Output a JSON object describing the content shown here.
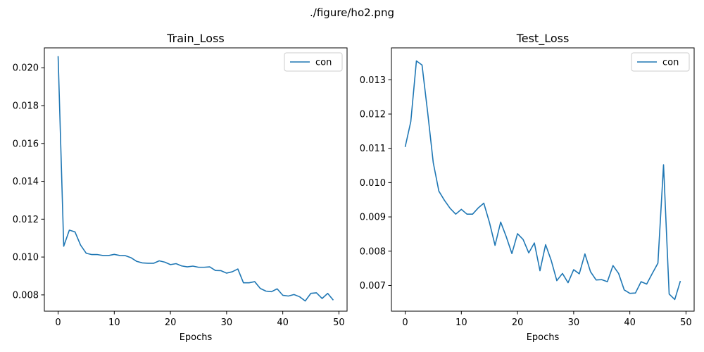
{
  "figure": {
    "suptitle": "./figure/ho2.png"
  },
  "chart_data": [
    {
      "type": "line",
      "title": "Train_Loss",
      "xlabel": "Epochs",
      "ylabel": "",
      "xlim": [
        -2.45,
        51.45
      ],
      "ylim": [
        0.00714,
        0.02105
      ],
      "xticks": [
        0,
        10,
        20,
        30,
        40,
        50
      ],
      "xtick_labels": [
        "0",
        "10",
        "20",
        "30",
        "40",
        "50"
      ],
      "yticks": [
        0.008,
        0.01,
        0.012,
        0.014,
        0.016,
        0.018,
        0.02
      ],
      "ytick_labels": [
        "0.008",
        "0.010",
        "0.012",
        "0.014",
        "0.016",
        "0.018",
        "0.020"
      ],
      "grid": false,
      "legend_position": "top-right",
      "series": [
        {
          "name": "con",
          "color": "#1f77b4",
          "x": [
            0,
            1,
            2,
            3,
            4,
            5,
            6,
            7,
            8,
            9,
            10,
            11,
            12,
            13,
            14,
            15,
            16,
            17,
            18,
            19,
            20,
            21,
            22,
            23,
            24,
            25,
            26,
            27,
            28,
            29,
            30,
            31,
            32,
            33,
            34,
            35,
            36,
            37,
            38,
            39,
            40,
            41,
            42,
            43,
            44,
            45,
            46,
            47,
            48,
            49
          ],
          "y": [
            0.02061,
            0.01057,
            0.01142,
            0.01133,
            0.01063,
            0.0102,
            0.01013,
            0.01013,
            0.01008,
            0.01008,
            0.01014,
            0.01008,
            0.01007,
            0.00996,
            0.00977,
            0.00969,
            0.00967,
            0.00967,
            0.0098,
            0.00973,
            0.0096,
            0.00965,
            0.00953,
            0.00948,
            0.00952,
            0.00946,
            0.00946,
            0.00948,
            0.00929,
            0.00928,
            0.00915,
            0.00922,
            0.00937,
            0.00864,
            0.00864,
            0.0087,
            0.00834,
            0.0082,
            0.00817,
            0.00832,
            0.00798,
            0.00794,
            0.00802,
            0.0079,
            0.00768,
            0.00808,
            0.00811,
            0.00781,
            0.00808,
            0.00772
          ]
        }
      ]
    },
    {
      "type": "line",
      "title": "Test_Loss",
      "xlabel": "Epochs",
      "ylabel": "",
      "xlim": [
        -2.45,
        51.45
      ],
      "ylim": [
        0.00625,
        0.01393
      ],
      "xticks": [
        0,
        10,
        20,
        30,
        40,
        50
      ],
      "xtick_labels": [
        "0",
        "10",
        "20",
        "30",
        "40",
        "50"
      ],
      "yticks": [
        0.007,
        0.008,
        0.009,
        0.01,
        0.011,
        0.012,
        0.013
      ],
      "ytick_labels": [
        "0.007",
        "0.008",
        "0.009",
        "0.010",
        "0.011",
        "0.012",
        "0.013"
      ],
      "grid": false,
      "legend_position": "top-right",
      "series": [
        {
          "name": "con",
          "color": "#1f77b4",
          "x": [
            0,
            1,
            2,
            3,
            4,
            5,
            6,
            7,
            8,
            9,
            10,
            11,
            12,
            13,
            14,
            15,
            16,
            17,
            18,
            19,
            20,
            21,
            22,
            23,
            24,
            25,
            26,
            27,
            28,
            29,
            30,
            31,
            32,
            33,
            34,
            35,
            36,
            37,
            38,
            39,
            40,
            41,
            42,
            43,
            44,
            45,
            46,
            47,
            48,
            49
          ],
          "y": [
            0.01104,
            0.01178,
            0.01355,
            0.01343,
            0.01205,
            0.01058,
            0.00975,
            0.00948,
            0.00925,
            0.00908,
            0.00922,
            0.00908,
            0.00908,
            0.00926,
            0.0094,
            0.00884,
            0.00817,
            0.00885,
            0.00842,
            0.00793,
            0.00851,
            0.00834,
            0.00795,
            0.00824,
            0.00743,
            0.00819,
            0.00773,
            0.00714,
            0.00735,
            0.00708,
            0.00746,
            0.00734,
            0.00792,
            0.0074,
            0.00716,
            0.00717,
            0.00711,
            0.00758,
            0.00735,
            0.00687,
            0.00677,
            0.00678,
            0.00711,
            0.00704,
            0.00735,
            0.00765,
            0.01052,
            0.00675,
            0.00659,
            0.00713
          ]
        }
      ]
    }
  ]
}
